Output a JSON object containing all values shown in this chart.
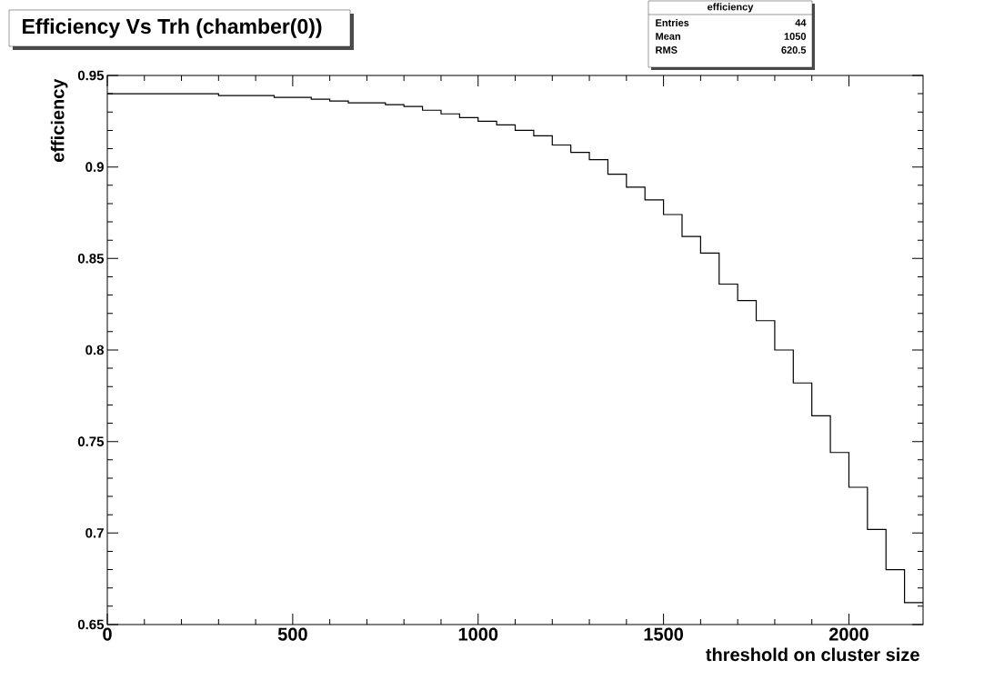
{
  "chart_data": {
    "type": "histogram",
    "title": "Efficiency Vs Trh (chamber(0))",
    "xlabel": "threshold on cluster size",
    "ylabel": "efficiency",
    "annotations": [
      "efficiency",
      "Entries",
      "44",
      "Mean",
      "1050",
      "RMS",
      "620.5"
    ],
    "bins": [
      0,
      50,
      100,
      150,
      200,
      250,
      300,
      350,
      400,
      450,
      500,
      550,
      600,
      650,
      700,
      750,
      800,
      850,
      900,
      950,
      1000,
      1050,
      1100,
      1150,
      1200,
      1250,
      1300,
      1350,
      1400,
      1450,
      1500,
      1550,
      1600,
      1650,
      1700,
      1750,
      1800,
      1850,
      1900,
      1950,
      2000,
      2050,
      2100,
      2150,
      2200
    ],
    "values": [
      0.94,
      0.94,
      0.94,
      0.94,
      0.94,
      0.94,
      0.939,
      0.939,
      0.939,
      0.938,
      0.938,
      0.937,
      0.936,
      0.935,
      0.935,
      0.934,
      0.933,
      0.931,
      0.929,
      0.927,
      0.925,
      0.923,
      0.92,
      0.917,
      0.912,
      0.908,
      0.904,
      0.896,
      0.889,
      0.882,
      0.874,
      0.862,
      0.853,
      0.836,
      0.827,
      0.816,
      0.8,
      0.782,
      0.764,
      0.744,
      0.725,
      0.702,
      0.68,
      0.662
    ],
    "color": "#000000",
    "xlim": [
      0,
      2200
    ],
    "ylim": [
      0.65,
      0.95
    ],
    "xticks": [
      0,
      500,
      1000,
      1500,
      2000
    ],
    "yticks": [
      0.65,
      0.7,
      0.75,
      0.8,
      0.85,
      0.9,
      0.95
    ]
  }
}
